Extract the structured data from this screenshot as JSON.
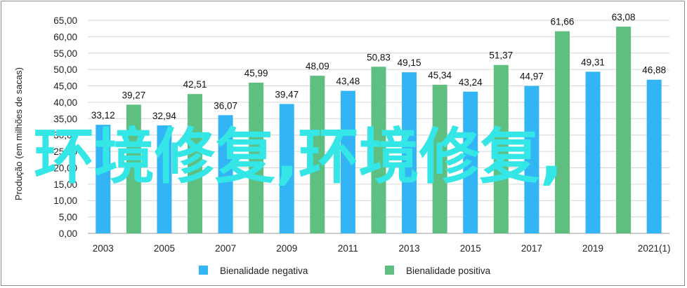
{
  "chart_data": {
    "type": "bar",
    "ylabel": "Produção (em milhões de sacas)",
    "ylim": [
      0,
      65
    ],
    "yticks": [
      "0,00",
      "5,00",
      "10,00",
      "15,00",
      "20,00",
      "25,00",
      "30,00",
      "35,00",
      "40,00",
      "45,00",
      "50,00",
      "55,00",
      "60,00",
      "65,00"
    ],
    "x_tick_labels": [
      "2003",
      "2005",
      "2007",
      "2009",
      "2011",
      "2013",
      "2015",
      "2017",
      "2019",
      "2021(1)"
    ],
    "grid": true,
    "legend_position": "bottom",
    "bars": [
      {
        "label": "33,12",
        "value": 33.12,
        "series": 0
      },
      {
        "label": "39,27",
        "value": 39.27,
        "series": 1
      },
      {
        "label": "32,94",
        "value": 32.94,
        "series": 0
      },
      {
        "label": "42,51",
        "value": 42.51,
        "series": 1
      },
      {
        "label": "36,07",
        "value": 36.07,
        "series": 0
      },
      {
        "label": "45,99",
        "value": 45.99,
        "series": 1
      },
      {
        "label": "39,47",
        "value": 39.47,
        "series": 0
      },
      {
        "label": "48,09",
        "value": 48.09,
        "series": 1
      },
      {
        "label": "43,48",
        "value": 43.48,
        "series": 0
      },
      {
        "label": "50,83",
        "value": 50.83,
        "series": 1
      },
      {
        "label": "49,15",
        "value": 49.15,
        "series": 0
      },
      {
        "label": "45,34",
        "value": 45.34,
        "series": 1
      },
      {
        "label": "43,24",
        "value": 43.24,
        "series": 0
      },
      {
        "label": "51,37",
        "value": 51.37,
        "series": 1
      },
      {
        "label": "44,97",
        "value": 44.97,
        "series": 0
      },
      {
        "label": "61,66",
        "value": 61.66,
        "series": 1
      },
      {
        "label": "49,31",
        "value": 49.31,
        "series": 0
      },
      {
        "label": "63,08",
        "value": 63.08,
        "series": 1
      },
      {
        "label": "46,88",
        "value": 46.88,
        "series": 0
      }
    ],
    "series": [
      {
        "name": "Bienalidade negativa",
        "color": "#33b4f4"
      },
      {
        "name": "Bienalidade positiva",
        "color": "#5fbf80"
      }
    ]
  },
  "watermark": "环境修复,环境修复,"
}
